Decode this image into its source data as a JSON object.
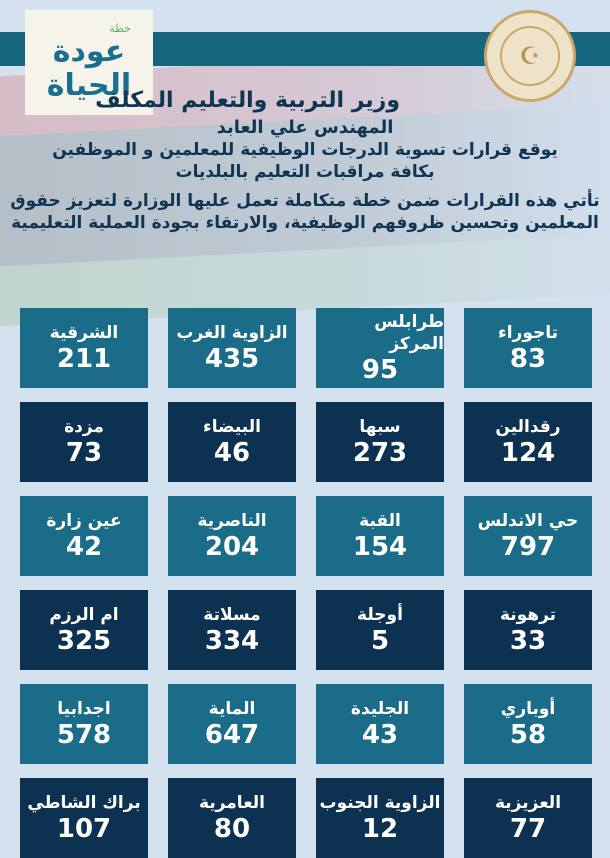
{
  "header": {
    "logo_small": "خطة",
    "logo_line1": "عودة",
    "logo_line2": "الحياة",
    "seal_text": "حكومة الوحدة الوطنية - وزارة التربية والتعليم",
    "seal_icon": "crescent-star-icon"
  },
  "titles": {
    "t1": "وزير التربية والتعليم المكلف",
    "t2": "المهندس علي العابد",
    "t3": "يوقع قرارات تسوية الدرجات الوظيفية للمعلمين و الموظفين",
    "t4": "بكافة مراقبات التعليم بالبلديات",
    "t5": "تأتي هذه القرارات ضمن خطة متكاملة تعمل عليها الوزارة لتعزيز حقوق المعلمين وتحسين ظروفهم الوظيفية، والارتقاء بجودة العملية التعليمية"
  },
  "colors": {
    "teal": "#1a6c88",
    "navy": "#0d3150",
    "band": "#15657f"
  },
  "tiles": [
    {
      "name": "تاجوراء",
      "count": "83"
    },
    {
      "name": "طرابلس المركز",
      "count": "95"
    },
    {
      "name": "الزاوية الغرب",
      "count": "435"
    },
    {
      "name": "الشرقية",
      "count": "211"
    },
    {
      "name": "رقدالين",
      "count": "124"
    },
    {
      "name": "سبها",
      "count": "273"
    },
    {
      "name": "البيضاء",
      "count": "46"
    },
    {
      "name": "مزدة",
      "count": "73"
    },
    {
      "name": "حي الاندلس",
      "count": "797"
    },
    {
      "name": "القبة",
      "count": "154"
    },
    {
      "name": "الناصرية",
      "count": "204"
    },
    {
      "name": "عين زارة",
      "count": "42"
    },
    {
      "name": "ترهونة",
      "count": "33"
    },
    {
      "name": "أوجلة",
      "count": "5"
    },
    {
      "name": "مسلاتة",
      "count": "334"
    },
    {
      "name": "ام الرزم",
      "count": "325"
    },
    {
      "name": "أوباري",
      "count": "58"
    },
    {
      "name": "الجليدة",
      "count": "43"
    },
    {
      "name": "الماية",
      "count": "647"
    },
    {
      "name": "اجدابيا",
      "count": "578"
    },
    {
      "name": "العزيزية",
      "count": "77"
    },
    {
      "name": "الزاوية الجنوب",
      "count": "12"
    },
    {
      "name": "العامرية",
      "count": "80"
    },
    {
      "name": "براك الشاطي",
      "count": "107"
    }
  ]
}
